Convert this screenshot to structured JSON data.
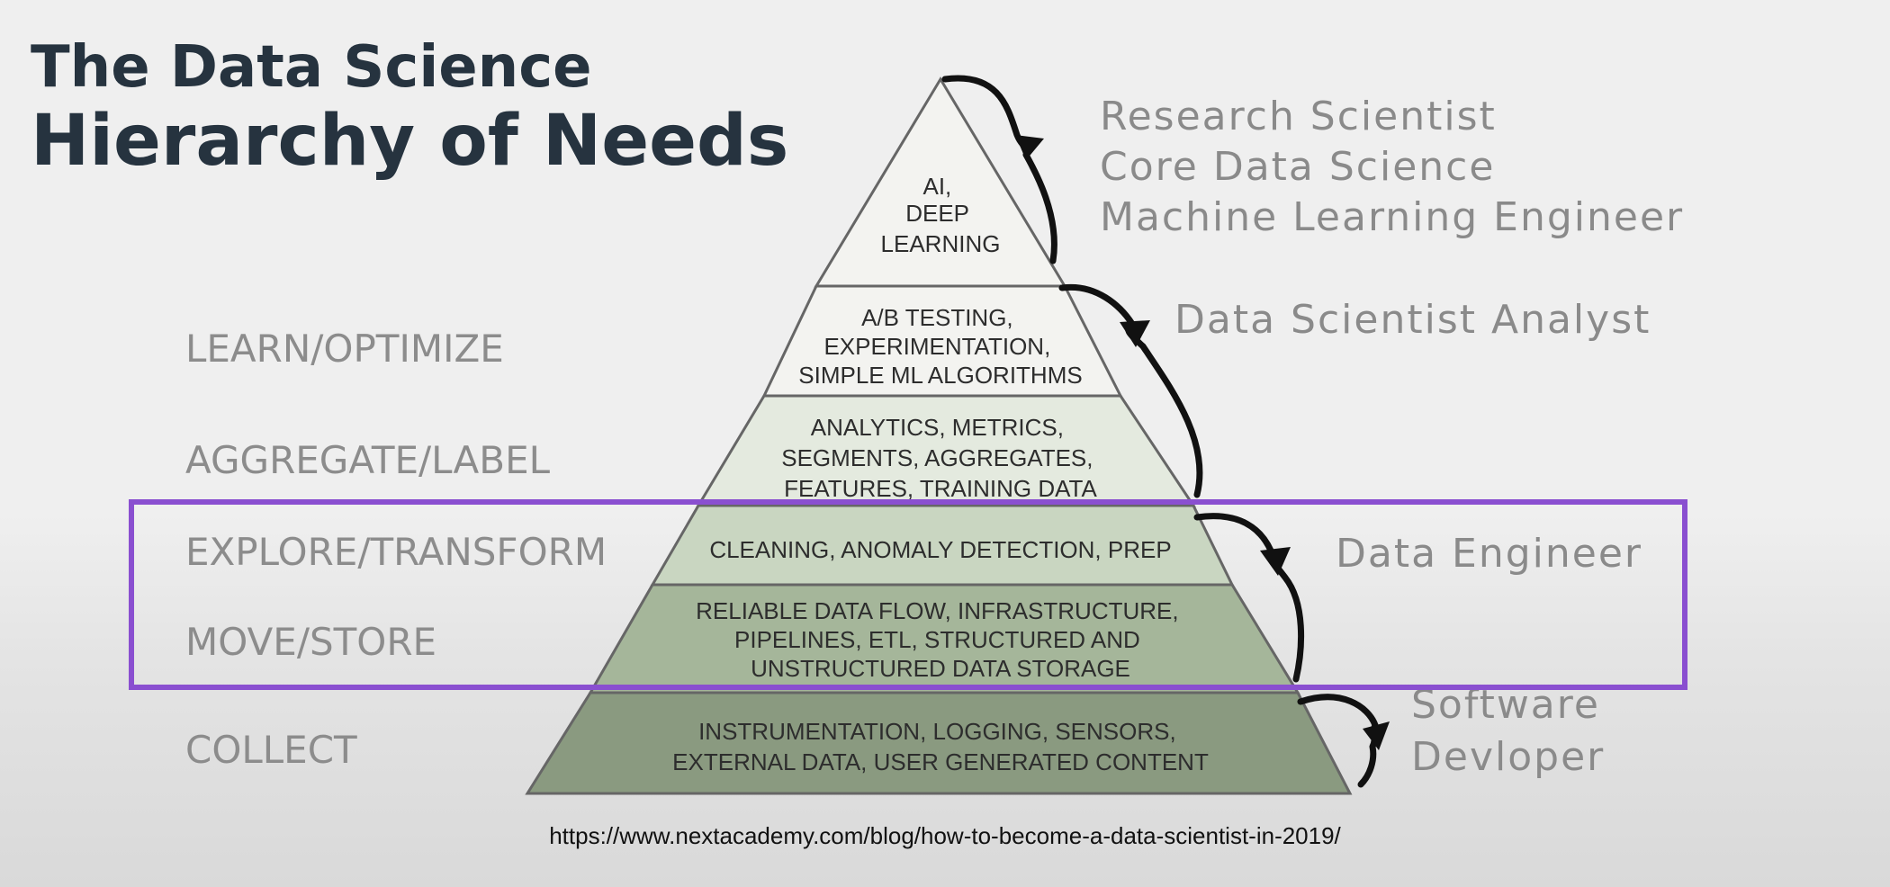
{
  "title": {
    "line1": "The Data Science",
    "line2": "Hierarchy of Needs"
  },
  "stages": [
    "LEARN/OPTIMIZE",
    "AGGREGATE/LABEL",
    "EXPLORE/TRANSFORM",
    "MOVE/STORE",
    "COLLECT"
  ],
  "pyramid_layers": [
    {
      "lines": [
        "AI,",
        "DEEP",
        "LEARNING"
      ],
      "color": "#f3f3f0"
    },
    {
      "lines": [
        "A/B TESTING,",
        "EXPERIMENTATION,",
        "SIMPLE ML ALGORITHMS"
      ],
      "color": "#f3f3f0"
    },
    {
      "lines": [
        "ANALYTICS, METRICS,",
        "SEGMENTS, AGGREGATES,",
        "FEATURES, TRAINING DATA"
      ],
      "color": "#e4eadf"
    },
    {
      "lines": [
        "CLEANING, ANOMALY DETECTION, PREP"
      ],
      "color": "#c9d6c1"
    },
    {
      "lines": [
        "RELIABLE DATA FLOW, INFRASTRUCTURE,",
        "PIPELINES, ETL, STRUCTURED AND",
        "UNSTRUCTURED DATA STORAGE"
      ],
      "color": "#a5b69a"
    },
    {
      "lines": [
        "INSTRUMENTATION, LOGGING, SENSORS,",
        "EXTERNAL DATA, USER GENERATED CONTENT"
      ],
      "color": "#8a9a80"
    }
  ],
  "roles": [
    {
      "lines": [
        "Research Scientist",
        "Core Data Science",
        "Machine Learning Engineer"
      ]
    },
    {
      "lines": [
        "Data Scientist Analyst"
      ]
    },
    {
      "lines": [
        "Data Engineer"
      ]
    },
    {
      "lines": [
        "Software",
        "Devloper"
      ]
    }
  ],
  "highlight_color": "#8a4fd0",
  "source_url": "https://www.nextacademy.com/blog/how-to-become-a-data-scientist-in-2019/"
}
